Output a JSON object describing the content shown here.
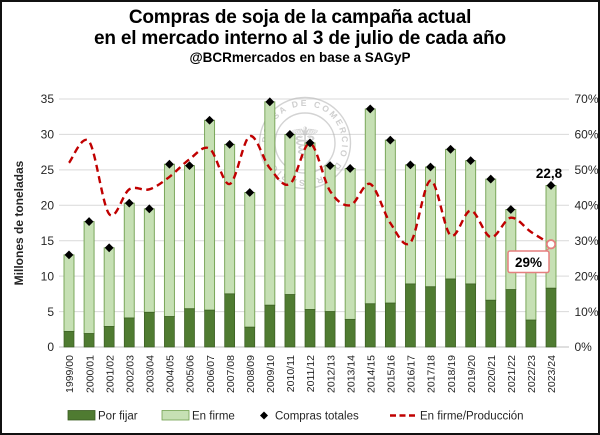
{
  "chart_data": {
    "type": "combo-stacked-bar-line",
    "title": "Compras de soja de la campaña actual",
    "subtitle": "en el mercado interno al 3 de julio de cada año",
    "source_line": "@BCRmercados en base a SAGyP",
    "ylabel": "Millones de toneladas",
    "watermark": "BOLSA DE COMERCIO DE ROSARIO",
    "categories": [
      "1999/00",
      "2000/01",
      "2001/02",
      "2002/03",
      "2003/04",
      "2004/05",
      "2005/06",
      "2006/07",
      "2007/08",
      "2008/09",
      "2009/10",
      "2010/11",
      "2011/12",
      "2012/13",
      "2013/14",
      "2014/15",
      "2015/16",
      "2016/17",
      "2017/18",
      "2018/19",
      "2019/20",
      "2020/21",
      "2021/22",
      "2022/23",
      "2023/24"
    ],
    "series": [
      {
        "name": "Por fijar",
        "type": "bar-stack",
        "axis": "left",
        "values": [
          2.2,
          1.9,
          2.9,
          4.1,
          4.9,
          4.3,
          5.4,
          5.2,
          7.5,
          2.8,
          5.9,
          7.4,
          5.3,
          5.0,
          3.9,
          6.1,
          6.2,
          8.9,
          8.5,
          9.6,
          8.9,
          6.6,
          8.1,
          3.8,
          8.3
        ]
      },
      {
        "name": "En firme",
        "type": "bar-stack",
        "axis": "left",
        "values": [
          10.8,
          15.8,
          11.1,
          16.2,
          14.6,
          21.5,
          20.2,
          26.8,
          21.1,
          19.0,
          28.7,
          22.6,
          23.5,
          20.6,
          21.3,
          27.5,
          23.0,
          16.8,
          16.9,
          18.3,
          17.4,
          17.1,
          11.3,
          7.5,
          14.5
        ]
      },
      {
        "name": "Compras totales",
        "type": "scatter-diamond",
        "axis": "left",
        "values": [
          13.0,
          17.7,
          14.0,
          20.3,
          19.5,
          25.8,
          25.6,
          32.0,
          28.6,
          21.8,
          34.6,
          30.0,
          28.8,
          25.6,
          25.2,
          33.6,
          29.2,
          25.7,
          25.4,
          27.9,
          26.3,
          23.7,
          19.4,
          11.3,
          22.8
        ]
      },
      {
        "name": "En firme/Producción",
        "type": "dashed-line",
        "axis": "right",
        "values": [
          52,
          58,
          37.5,
          44.5,
          44.5,
          48,
          53,
          56,
          46,
          59.5,
          50.5,
          46,
          57.5,
          44,
          40,
          46,
          35,
          29.5,
          47,
          31.5,
          38.5,
          31,
          36.5,
          32.5,
          29
        ]
      }
    ],
    "left_axis": {
      "min": 0,
      "max": 35,
      "ticks": [
        "0",
        "5",
        "10",
        "15",
        "20",
        "25",
        "30",
        "35"
      ],
      "grid": true
    },
    "right_axis": {
      "min": 0,
      "max": 70,
      "ticks": [
        "0%",
        "10%",
        "20%",
        "30%",
        "40%",
        "50%",
        "60%",
        "70%"
      ]
    },
    "annotations": {
      "last_total_label": "22,8",
      "last_ratio_label": "29%"
    },
    "legend_position": "bottom",
    "colors": {
      "dark_green": "#4f7b31",
      "dark_green_border": "#3a5c22",
      "light_green": "#c6e0b4",
      "light_green_border": "#71a04f",
      "red_line": "#c00000",
      "callout_border": "#e57f7f",
      "grid": "#d9d9d9",
      "axis_line": "#bfbfbf",
      "text": "#262626",
      "watermark_grey": "#b0b0b0"
    }
  }
}
